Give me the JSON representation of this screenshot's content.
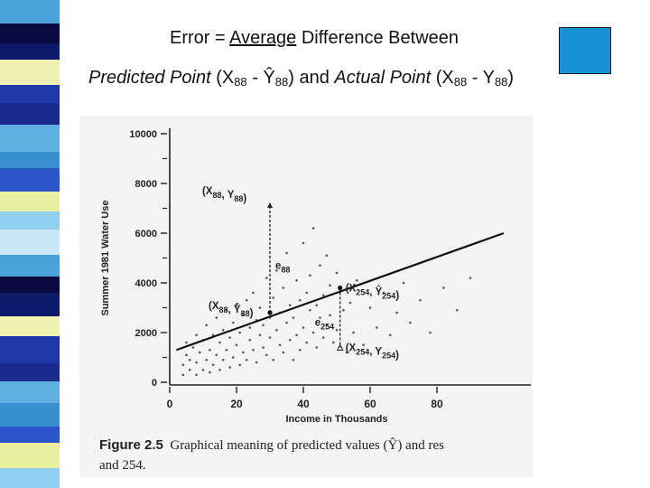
{
  "slide": {
    "title_line1": {
      "prefix": "Error = ",
      "underlined": "Average",
      "suffix": " Difference Between"
    },
    "title_line2": {
      "predicted_label": "Predicted Point",
      "p_open": " (X",
      "p_sub1": "88",
      "p_mid": " - Ŷ",
      "p_sub2": "88",
      "p_close": ") and ",
      "actual_label": "Actual Point",
      "a_open": " (X",
      "a_sub1": "88",
      "a_mid": " - Y",
      "a_sub2": "88",
      "a_close": ")"
    },
    "accent_color": "#1a90d6"
  },
  "figure": {
    "caption_label": "Figure 2.5",
    "caption_line1": "Graphical meaning of predicted values (Ŷ) and res",
    "caption_line2": "and 254.",
    "annotations": {
      "y88_top": "(X",
      "y88_sub": "88",
      "y88_y": ", Y",
      "y88_sub2": "88",
      "y88_close": ")",
      "e88": "e",
      "e88_sub": "88",
      "yhat88": "(X",
      "yhat88_sub": "88",
      "yhat88_y": ", Ŷ",
      "yhat88_sub2": "88",
      "yhat88_close": ")",
      "yhat254": "(X",
      "yhat254_sub": "254",
      "yhat254_y": ", Ŷ",
      "yhat254_sub2": "254",
      "yhat254_close": ")",
      "e254": "e",
      "e254_sub": "254",
      "y254": "(X",
      "y254_sub": "254",
      "y254_y": ", Y",
      "y254_sub2": "254",
      "y254_close": ")"
    }
  },
  "chart_data": {
    "type": "scatter",
    "xlabel": "Income in Thousands",
    "ylabel": "Summer 1981 Water Use",
    "xlim": [
      0,
      100
    ],
    "ylim": [
      0,
      10000
    ],
    "x_ticks": [
      "0",
      "20",
      "40",
      "60",
      "80"
    ],
    "y_ticks": [
      "0",
      "2000",
      "4000",
      "6000",
      "8000",
      "10000"
    ],
    "x_tick_values": [
      0,
      20,
      40,
      60,
      80
    ],
    "y_tick_values": [
      0,
      2000,
      4000,
      6000,
      8000,
      10000
    ],
    "regression_line": {
      "x": [
        2,
        100
      ],
      "y": [
        1300,
        6000
      ]
    },
    "highlighted": {
      "x88": 30,
      "y88": 7200,
      "yhat88": 2800,
      "x254": 51,
      "y254": 1400,
      "yhat254": 3800
    },
    "series": [
      {
        "points": [
          [
            4,
            300
          ],
          [
            4,
            700
          ],
          [
            5,
            1100
          ],
          [
            5,
            1600
          ],
          [
            6,
            500
          ],
          [
            6,
            900
          ],
          [
            7,
            1400
          ],
          [
            8,
            300
          ],
          [
            8,
            800
          ],
          [
            8,
            1900
          ],
          [
            9,
            1200
          ],
          [
            10,
            500
          ],
          [
            10,
            1700
          ],
          [
            11,
            900
          ],
          [
            11,
            2300
          ],
          [
            12,
            400
          ],
          [
            12,
            1300
          ],
          [
            13,
            1900
          ],
          [
            13,
            700
          ],
          [
            14,
            2600
          ],
          [
            14,
            1100
          ],
          [
            15,
            1600
          ],
          [
            15,
            500
          ],
          [
            16,
            2100
          ],
          [
            16,
            900
          ],
          [
            17,
            1300
          ],
          [
            17,
            2900
          ],
          [
            18,
            600
          ],
          [
            18,
            1800
          ],
          [
            19,
            2400
          ],
          [
            19,
            1000
          ],
          [
            20,
            1500
          ],
          [
            20,
            3100
          ],
          [
            21,
            700
          ],
          [
            21,
            2000
          ],
          [
            22,
            1200
          ],
          [
            22,
            2700
          ],
          [
            23,
            3300
          ],
          [
            23,
            900
          ],
          [
            24,
            1700
          ],
          [
            24,
            2200
          ],
          [
            25,
            3600
          ],
          [
            25,
            1300
          ],
          [
            26,
            2500
          ],
          [
            26,
            800
          ],
          [
            27,
            1900
          ],
          [
            27,
            3000
          ],
          [
            28,
            1400
          ],
          [
            28,
            2300
          ],
          [
            29,
            4200
          ],
          [
            29,
            1100
          ],
          [
            30,
            1800
          ],
          [
            30,
            2600
          ],
          [
            31,
            3400
          ],
          [
            31,
            900
          ],
          [
            32,
            2100
          ],
          [
            32,
            4500
          ],
          [
            33,
            1500
          ],
          [
            33,
            2800
          ],
          [
            34,
            3800
          ],
          [
            34,
            1200
          ],
          [
            35,
            2400
          ],
          [
            35,
            5200
          ],
          [
            36,
            1700
          ],
          [
            36,
            3100
          ],
          [
            37,
            900
          ],
          [
            37,
            2600
          ],
          [
            38,
            4100
          ],
          [
            38,
            1900
          ],
          [
            39,
            3300
          ],
          [
            39,
            1300
          ],
          [
            40,
            2200
          ],
          [
            40,
            5600
          ],
          [
            41,
            3600
          ],
          [
            41,
            1600
          ],
          [
            42,
            2900
          ],
          [
            42,
            4300
          ],
          [
            43,
            2000
          ],
          [
            43,
            6200
          ],
          [
            44,
            3100
          ],
          [
            44,
            1400
          ],
          [
            45,
            2600
          ],
          [
            45,
            4700
          ],
          [
            46,
            3500
          ],
          [
            46,
            1800
          ],
          [
            47,
            2300
          ],
          [
            47,
            5100
          ],
          [
            48,
            3900
          ],
          [
            48,
            2700
          ],
          [
            49,
            1600
          ],
          [
            50,
            4400
          ],
          [
            50,
            2100
          ],
          [
            52,
            2900
          ],
          [
            53,
            1200
          ],
          [
            54,
            3200
          ],
          [
            55,
            2000
          ],
          [
            56,
            4100
          ],
          [
            58,
            1500
          ],
          [
            60,
            3000
          ],
          [
            62,
            2200
          ],
          [
            64,
            3600
          ],
          [
            66,
            1900
          ],
          [
            68,
            2800
          ],
          [
            70,
            4000
          ],
          [
            72,
            2400
          ],
          [
            75,
            3300
          ],
          [
            78,
            2000
          ],
          [
            82,
            3800
          ],
          [
            86,
            2900
          ],
          [
            90,
            4200
          ]
        ]
      }
    ]
  }
}
